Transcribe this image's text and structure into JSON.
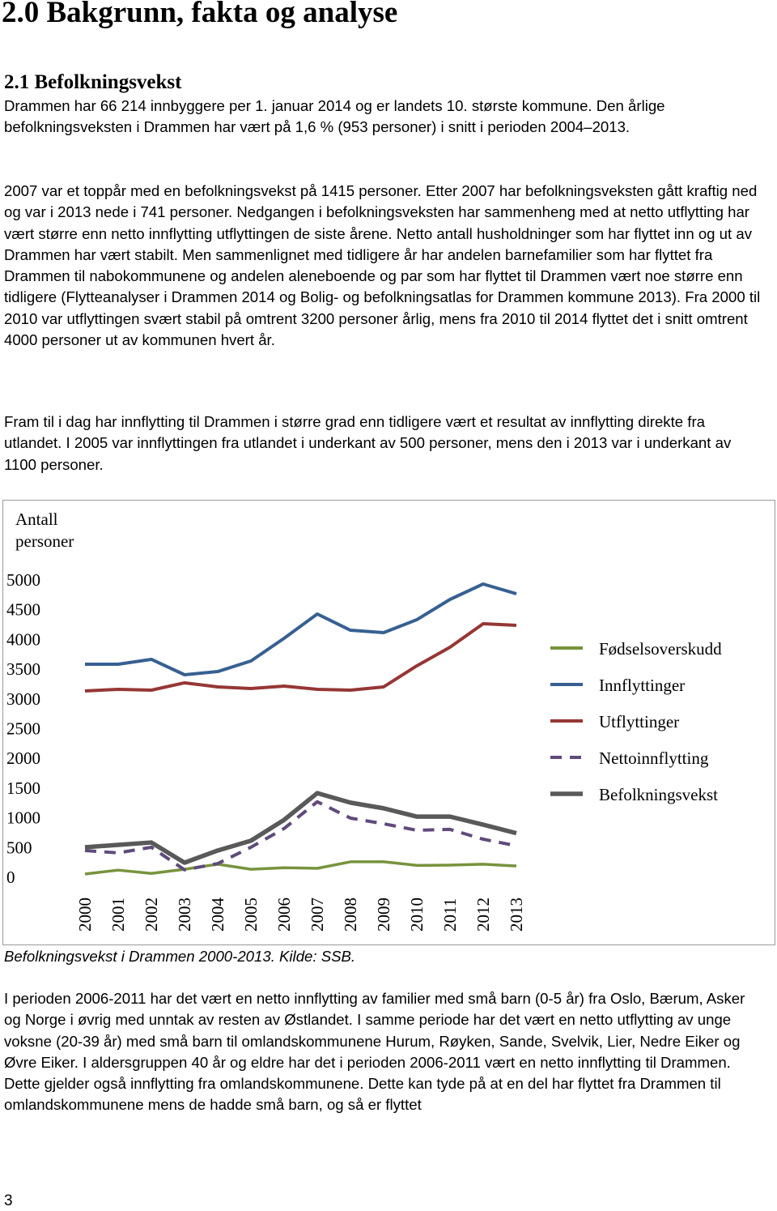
{
  "heading": "2.0 Bakgrunn, fakta og analyse",
  "subheading": "2.1 Befolkningsvekst",
  "paragraphs": [
    "Drammen har 66 214 innbyggere per 1. januar 2014 og er landets 10. største kommune. Den årlige befolkningsveksten i Drammen har vært på 1,6 % (953 personer) i snitt i perioden 2004–2013.",
    "2007 var et toppår med en befolkningsvekst på 1415 personer. Etter 2007 har befolkningsveksten gått kraftig ned og var i 2013 nede i 741 personer. Nedgangen i befolkningsveksten har sammenheng med at netto utflytting har vært større enn netto innflytting utflyttingen de siste årene. Netto antall husholdninger som har flyttet inn og ut av Drammen har vært stabilt. Men sammenlignet med tidligere år har andelen barnefamilier som har flyttet fra Drammen til nabokommunene og andelen aleneboende og par som har flyttet til Drammen vært noe større enn tidligere (Flytteanalyser i Drammen 2014 og Bolig- og befolkningsatlas for Drammen kommune 2013). Fra 2000 til 2010 var utflyttingen svært stabil på omtrent 3200 personer årlig, mens fra 2010 til 2014 flyttet det i snitt omtrent 4000 personer ut av kommunen hvert år.",
    "Fram til i dag har innflytting til Drammen i større grad enn tidligere vært et resultat av innflytting direkte fra utlandet. I 2005 var innflyttingen fra utlandet i underkant av 500 personer, mens den i 2013 var i underkant av 1100 personer."
  ],
  "chart_data": {
    "type": "line",
    "y_label": "Antall personer",
    "categories": [
      "2000",
      "2001",
      "2002",
      "2003",
      "2004",
      "2005",
      "2006",
      "2007",
      "2008",
      "2009",
      "2010",
      "2011",
      "2012",
      "2013"
    ],
    "ylim": [
      0,
      5000
    ],
    "yticks": [
      0,
      500,
      1000,
      1500,
      2000,
      2500,
      3000,
      3500,
      4000,
      4500,
      5000
    ],
    "grid": false,
    "legend": "right",
    "series": [
      {
        "name": "Fødselsoverskudd",
        "color": "#77933c",
        "values": [
          55,
          120,
          65,
          135,
          220,
          135,
          160,
          150,
          260,
          260,
          200,
          205,
          220,
          190
        ]
      },
      {
        "name": "Innflyttinger",
        "color": "#376092",
        "values": [
          3583,
          3583,
          3665,
          3406,
          3460,
          3638,
          4019,
          4428,
          4155,
          4114,
          4332,
          4673,
          4932,
          4768
        ]
      },
      {
        "name": "Utflyttinger",
        "color": "#953735",
        "values": [
          3134,
          3161,
          3147,
          3270,
          3202,
          3174,
          3215,
          3161,
          3147,
          3202,
          3556,
          3869,
          4264,
          4237
        ]
      },
      {
        "name": "Nettoinnflytting",
        "color": "#604a7b",
        "dashed": true,
        "values": [
          450,
          410,
          505,
          125,
          230,
          505,
          820,
          1270,
          995,
          900,
          790,
          805,
          640,
          530
        ]
      },
      {
        "name": "Befolkningsvekst",
        "color": "#595959",
        "values": [
          505,
          545,
          585,
          245,
          450,
          615,
          965,
          1415,
          1255,
          1160,
          1020,
          1020,
          885,
          741
        ]
      }
    ]
  },
  "caption": "Befolkningsvekst i Drammen 2000-2013. Kilde: SSB.",
  "paragraphs_after": [
    "I perioden 2006-2011 har det vært en netto innflytting av familier med små barn (0-5 år) fra Oslo, Bærum, Asker og Norge i øvrig med unntak av resten av Østlandet. I samme periode har det vært en netto utflytting av unge voksne (20-39 år) med små barn til omlandskommunene Hurum, Røyken, Sande, Svelvik, Lier, Nedre Eiker og Øvre Eiker. I aldersgruppen 40 år og eldre har det i perioden 2006-2011 vært en netto innflytting til Drammen. Dette gjelder også innflytting fra omlandskommunene. Dette kan tyde på at en del har flyttet fra Drammen til omlandskommunene mens de hadde små barn, og så er flyttet"
  ],
  "page_number": "3"
}
